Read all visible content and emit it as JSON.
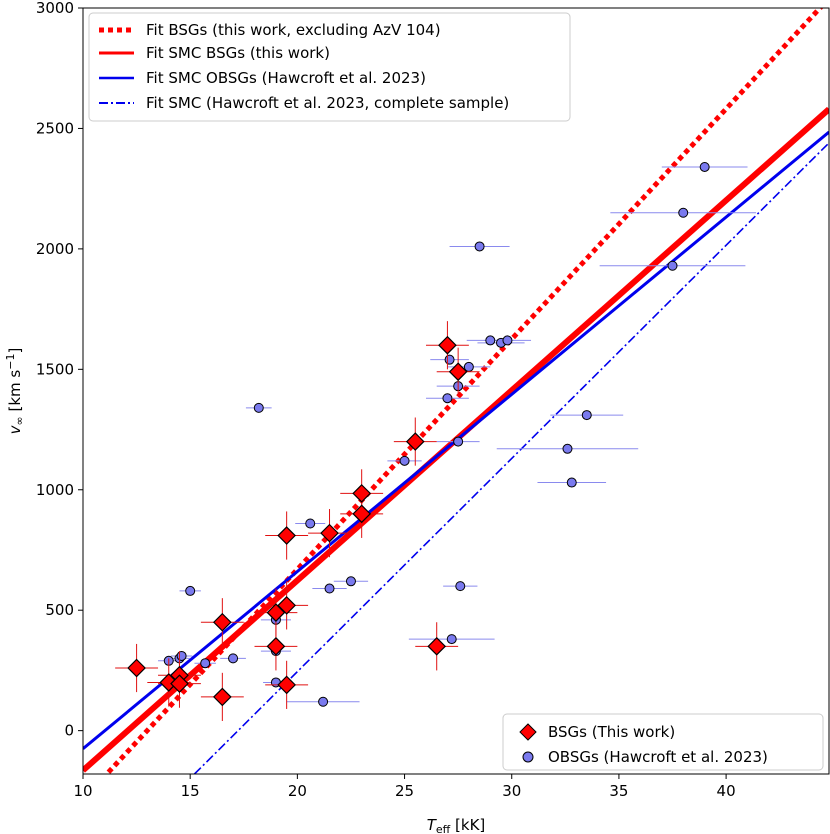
{
  "chart_data": {
    "type": "scatter",
    "xlabel": "T",
    "xlabel_sub": "eff",
    "xlabel_unit": " [kK]",
    "ylabel": "v",
    "ylabel_sub": "∞",
    "ylabel_unit_a": " [km s",
    "ylabel_unit_exp": "−1",
    "ylabel_unit_b": "]",
    "xlim": [
      10,
      44.8
    ],
    "ylim": [
      -180,
      3000
    ],
    "x_ticks": [
      10,
      15,
      20,
      25,
      30,
      35,
      40
    ],
    "y_ticks": [
      0,
      500,
      1000,
      1500,
      2000,
      2500,
      3000
    ],
    "colors": {
      "red": "#ff0000",
      "blue": "#0000ee",
      "obsg_fill": "#7a7aee",
      "errbar_red": "#e01010",
      "errbar_blue": "#8a8aee"
    },
    "fits": [
      {
        "name": "Fit BSGs (this work, excluding AzV 104)",
        "style": "dotted",
        "color": "#ff0000",
        "x": [
          10.9,
          44.8
        ],
        "y": [
          -200,
          3040
        ]
      },
      {
        "name": "Fit SMC BSGs (this work)",
        "style": "solid-thick",
        "color": "#ff0000",
        "x": [
          10,
          44.8
        ],
        "y": [
          -165,
          2580
        ]
      },
      {
        "name": "Fit SMC OBSGs (Hawcroft et al. 2023)",
        "style": "solid",
        "color": "#0000ee",
        "x": [
          10,
          44.8
        ],
        "y": [
          -75,
          2485
        ]
      },
      {
        "name": "Fit SMC (Hawcroft et al. 2023, complete sample)",
        "style": "dashdot",
        "color": "#0000ee",
        "x": [
          15.2,
          44.8
        ],
        "y": [
          -180,
          2440
        ]
      }
    ],
    "series": [
      {
        "name": "BSGs (This work)",
        "marker": "diamond",
        "points": [
          {
            "x": 12.5,
            "y": 260,
            "xerr": 1.0,
            "yerr": 100
          },
          {
            "x": 14.0,
            "y": 200,
            "xerr": 1.0,
            "yerr": 100
          },
          {
            "x": 14.5,
            "y": 230,
            "xerr": 1.0,
            "yerr": 100
          },
          {
            "x": 14.5,
            "y": 195,
            "xerr": 1.0,
            "yerr": 100
          },
          {
            "x": 16.5,
            "y": 450,
            "xerr": 1.0,
            "yerr": 100
          },
          {
            "x": 16.5,
            "y": 140,
            "xerr": 1.0,
            "yerr": 100
          },
          {
            "x": 19.0,
            "y": 490,
            "xerr": 1.0,
            "yerr": 100
          },
          {
            "x": 19.0,
            "y": 350,
            "xerr": 1.0,
            "yerr": 100
          },
          {
            "x": 19.5,
            "y": 520,
            "xerr": 1.0,
            "yerr": 100
          },
          {
            "x": 19.5,
            "y": 190,
            "xerr": 1.0,
            "yerr": 100
          },
          {
            "x": 19.5,
            "y": 810,
            "xerr": 1.0,
            "yerr": 100
          },
          {
            "x": 21.5,
            "y": 820,
            "xerr": 1.0,
            "yerr": 100
          },
          {
            "x": 23.0,
            "y": 985,
            "xerr": 1.0,
            "yerr": 100
          },
          {
            "x": 23.0,
            "y": 900,
            "xerr": 1.0,
            "yerr": 100
          },
          {
            "x": 25.5,
            "y": 1200,
            "xerr": 1.0,
            "yerr": 100
          },
          {
            "x": 26.5,
            "y": 350,
            "xerr": 1.0,
            "yerr": 100
          },
          {
            "x": 27.0,
            "y": 1600,
            "xerr": 1.0,
            "yerr": 100
          },
          {
            "x": 27.5,
            "y": 1490,
            "xerr": 1.0,
            "yerr": 100
          }
        ]
      },
      {
        "name": "OBSGs (Hawcroft et al. 2023)",
        "marker": "circle",
        "points": [
          {
            "x": 14.0,
            "y": 290,
            "xerr": 0.5,
            "yerr": 0
          },
          {
            "x": 14.5,
            "y": 300,
            "xerr": 0.5,
            "yerr": 0
          },
          {
            "x": 14.6,
            "y": 310,
            "xerr": 0.5,
            "yerr": 0
          },
          {
            "x": 15.0,
            "y": 580,
            "xerr": 0.5,
            "yerr": 0
          },
          {
            "x": 15.7,
            "y": 280,
            "xerr": 0.5,
            "yerr": 0
          },
          {
            "x": 17.0,
            "y": 300,
            "xerr": 0.6,
            "yerr": 0
          },
          {
            "x": 18.2,
            "y": 1340,
            "xerr": 0.6,
            "yerr": 0
          },
          {
            "x": 19.0,
            "y": 200,
            "xerr": 0.6,
            "yerr": 0
          },
          {
            "x": 19.0,
            "y": 330,
            "xerr": 0.7,
            "yerr": 0
          },
          {
            "x": 19.0,
            "y": 460,
            "xerr": 0.7,
            "yerr": 0
          },
          {
            "x": 20.6,
            "y": 860,
            "xerr": 0.7,
            "yerr": 0
          },
          {
            "x": 21.2,
            "y": 120,
            "xerr": 1.7,
            "yerr": 0
          },
          {
            "x": 21.5,
            "y": 590,
            "xerr": 0.8,
            "yerr": 0
          },
          {
            "x": 22.5,
            "y": 620,
            "xerr": 0.8,
            "yerr": 0
          },
          {
            "x": 25.0,
            "y": 1120,
            "xerr": 0.8,
            "yerr": 0
          },
          {
            "x": 27.0,
            "y": 1380,
            "xerr": 1.0,
            "yerr": 0
          },
          {
            "x": 27.1,
            "y": 1540,
            "xerr": 0.9,
            "yerr": 0
          },
          {
            "x": 27.2,
            "y": 380,
            "xerr": 2.0,
            "yerr": 0
          },
          {
            "x": 27.5,
            "y": 1430,
            "xerr": 1.0,
            "yerr": 0
          },
          {
            "x": 27.5,
            "y": 1200,
            "xerr": 1.0,
            "yerr": 0
          },
          {
            "x": 27.6,
            "y": 600,
            "xerr": 0.8,
            "yerr": 0
          },
          {
            "x": 28.0,
            "y": 1510,
            "xerr": 1.0,
            "yerr": 0
          },
          {
            "x": 28.5,
            "y": 2010,
            "xerr": 1.4,
            "yerr": 0
          },
          {
            "x": 29.0,
            "y": 1620,
            "xerr": 1.1,
            "yerr": 0
          },
          {
            "x": 29.5,
            "y": 1610,
            "xerr": 1.1,
            "yerr": 0
          },
          {
            "x": 29.8,
            "y": 1620,
            "xerr": 1.1,
            "yerr": 0
          },
          {
            "x": 32.6,
            "y": 1170,
            "xerr": 3.3,
            "yerr": 0
          },
          {
            "x": 32.8,
            "y": 1030,
            "xerr": 1.6,
            "yerr": 0
          },
          {
            "x": 33.5,
            "y": 1310,
            "xerr": 1.7,
            "yerr": 0
          },
          {
            "x": 37.5,
            "y": 1930,
            "xerr": 3.4,
            "yerr": 0
          },
          {
            "x": 38.0,
            "y": 2150,
            "xerr": 3.4,
            "yerr": 0
          },
          {
            "x": 39.0,
            "y": 2340,
            "xerr": 2.0,
            "yerr": 0
          }
        ]
      }
    ]
  }
}
